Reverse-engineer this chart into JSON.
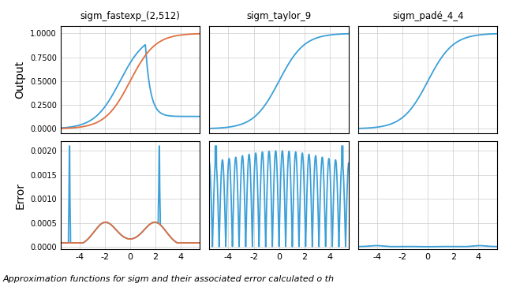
{
  "titles": [
    "sigm_fastexp_(2,512)",
    "sigm_taylor_9",
    "sigm_padé_4_4"
  ],
  "xlim": [
    -5.5,
    5.5
  ],
  "output_ylim": [
    -0.05,
    1.08
  ],
  "error_ylim": [
    -5e-05,
    0.0022
  ],
  "output_yticks": [
    0.0,
    0.25,
    0.5,
    0.75,
    1.0
  ],
  "output_yticklabels": [
    "0.0000",
    "0.2500",
    "0.5000",
    "0.7500",
    "1.0000"
  ],
  "error_yticks": [
    0.0,
    0.0005,
    0.001,
    0.0015,
    0.002
  ],
  "error_yticklabels": [
    "0.0000",
    "0.0005",
    "0.0010",
    "0.0015",
    "0.0020"
  ],
  "xticks": [
    -4,
    -2,
    0,
    2,
    4
  ],
  "color_sigmoid": "#e07040",
  "color_approx": "#3ca0d8",
  "background": "#ffffff",
  "grid_color": "#cccccc",
  "ylabel_output": "Output",
  "ylabel_error": "Error",
  "caption": "Approximation functions for sigm and their associated error calculated o th"
}
